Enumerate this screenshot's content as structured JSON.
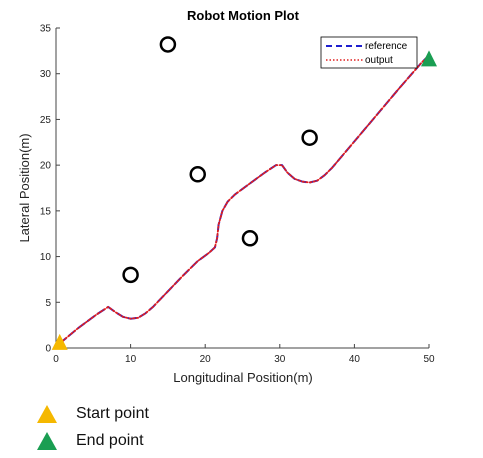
{
  "chart_data": {
    "type": "line",
    "title": "Robot Motion Plot",
    "xlabel": "Longitudinal Position(m)",
    "ylabel": "Lateral Position(m)",
    "xlim": [
      0,
      50
    ],
    "ylim": [
      0,
      35
    ],
    "xticks": [
      0,
      10,
      20,
      30,
      40,
      50
    ],
    "yticks": [
      0,
      5,
      10,
      15,
      20,
      25,
      30,
      35
    ],
    "grid": false,
    "legend_position": "top-right",
    "series": [
      {
        "name": "reference",
        "style": "dashed",
        "color": "#1f1fcf",
        "x": [
          0.5,
          3,
          5.5,
          7,
          8,
          9,
          10,
          11,
          12,
          13,
          15,
          17,
          19,
          20.5,
          21.3,
          21.6,
          21.8,
          22.3,
          23,
          24,
          26,
          28,
          29.5,
          30.3,
          31,
          32,
          33,
          34,
          35,
          36,
          37,
          40,
          43,
          46,
          49,
          50
        ],
        "y": [
          0.5,
          2.2,
          3.7,
          4.5,
          3.9,
          3.4,
          3.2,
          3.3,
          3.8,
          4.5,
          6.2,
          7.9,
          9.5,
          10.4,
          11.0,
          12.0,
          13.5,
          15.0,
          16.0,
          16.8,
          18.0,
          19.2,
          20.0,
          20.0,
          19.2,
          18.5,
          18.2,
          18.1,
          18.3,
          18.9,
          19.7,
          22.6,
          25.5,
          28.4,
          31.2,
          32.0
        ]
      },
      {
        "name": "output",
        "style": "dotted",
        "color": "#e01e1e",
        "x": [
          0.5,
          3,
          5.5,
          7,
          8,
          9,
          10,
          11,
          12,
          13,
          15,
          17,
          19,
          20.5,
          21.3,
          21.6,
          21.8,
          22.3,
          23,
          24,
          26,
          28,
          29.5,
          30.3,
          31,
          32,
          33,
          34,
          35,
          36,
          37,
          40,
          43,
          46,
          49,
          50
        ],
        "y": [
          0.5,
          2.2,
          3.7,
          4.5,
          3.9,
          3.4,
          3.2,
          3.3,
          3.8,
          4.5,
          6.2,
          7.9,
          9.5,
          10.4,
          11.0,
          12.0,
          13.5,
          15.0,
          16.0,
          16.8,
          18.0,
          19.2,
          20.0,
          20.0,
          19.2,
          18.5,
          18.2,
          18.1,
          18.3,
          18.9,
          19.7,
          22.6,
          25.5,
          28.4,
          31.2,
          32.0
        ]
      }
    ],
    "obstacles": [
      {
        "x": 15,
        "y": 33.2
      },
      {
        "x": 19,
        "y": 19
      },
      {
        "x": 10,
        "y": 8
      },
      {
        "x": 26,
        "y": 12
      },
      {
        "x": 34,
        "y": 23
      }
    ],
    "start_point": {
      "x": 0.5,
      "y": 0.5,
      "color": "#f5b800"
    },
    "end_point": {
      "x": 50,
      "y": 31.5,
      "color": "#1a9e52"
    }
  },
  "key": {
    "start_label": "Start point",
    "end_label": "End point"
  }
}
